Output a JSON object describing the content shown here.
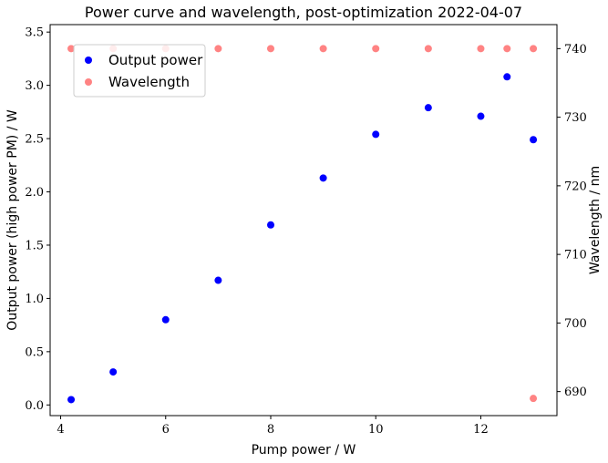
{
  "chart_data": {
    "type": "scatter",
    "title": "Power curve and wavelength, post-optimization 2022-04-07",
    "xlabel": "Pump power / W",
    "ylabel": "Output power (high power PM) / W",
    "y2label": "Wavelength / nm",
    "xlim": [
      3.8,
      13.45
    ],
    "ylim": [
      -0.1,
      3.57
    ],
    "y2lim": [
      686.5,
      743.5
    ],
    "xticks": [
      4,
      6,
      8,
      10,
      12
    ],
    "yticks": [
      0.0,
      0.5,
      1.0,
      1.5,
      2.0,
      2.5,
      3.0,
      3.5
    ],
    "y2ticks": [
      690,
      700,
      710,
      720,
      730,
      740
    ],
    "grid": false,
    "legend_position": "upper-left",
    "series": [
      {
        "name": "Output power",
        "axis": "left",
        "color": "#0000ff",
        "x": [
          4.2,
          5,
          6,
          7,
          8,
          9,
          10,
          11,
          12,
          12.5,
          13
        ],
        "y": [
          0.05,
          0.31,
          0.8,
          1.17,
          1.69,
          2.13,
          2.54,
          2.79,
          2.71,
          3.08,
          2.49
        ]
      },
      {
        "name": "Wavelength",
        "axis": "right",
        "color": "#ff5a5a",
        "opacity": 0.75,
        "x": [
          4.2,
          5,
          6,
          7,
          8,
          9,
          10,
          11,
          12,
          12.5,
          13,
          13
        ],
        "y": [
          740,
          740,
          740,
          740,
          740,
          740,
          740,
          740,
          740,
          740,
          740,
          689
        ]
      }
    ]
  }
}
